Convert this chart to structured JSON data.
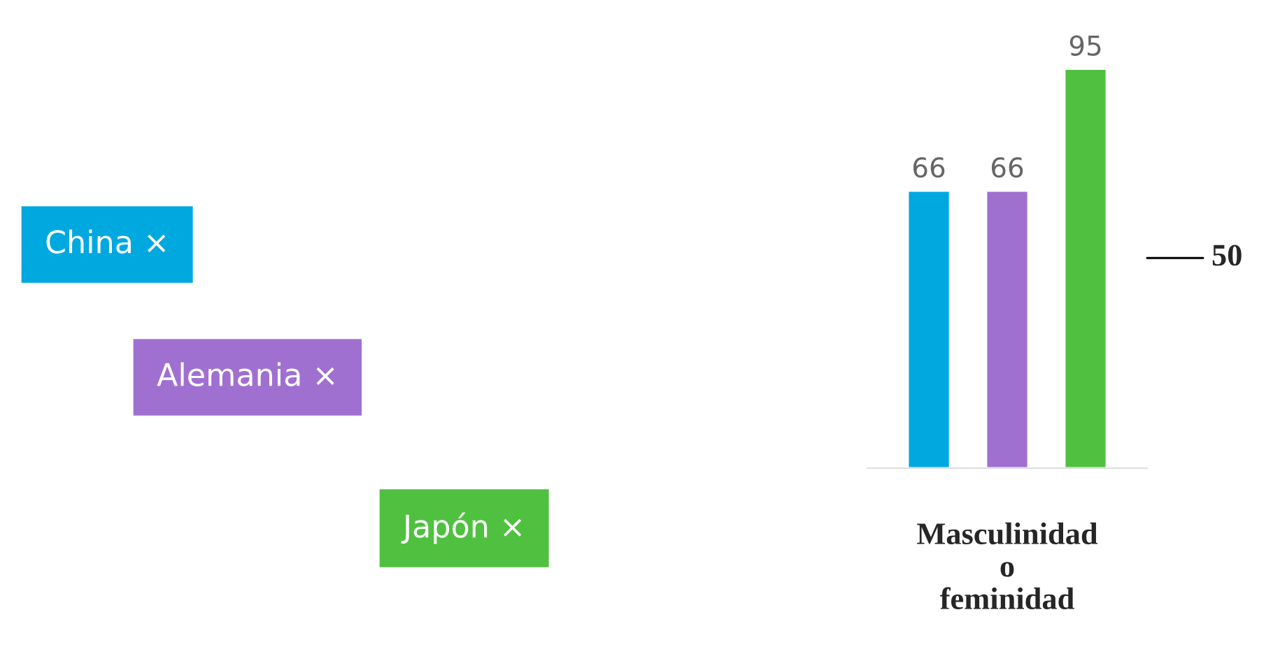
{
  "chart_data": {
    "type": "bar",
    "categories": [
      "Masculinidad o feminidad"
    ],
    "series": [
      {
        "name": "China ×",
        "color": "#00a8e0",
        "values": [
          66
        ]
      },
      {
        "name": "Alemania ×",
        "color": "#a070d0",
        "values": [
          66
        ]
      },
      {
        "name": "Japón ×",
        "color": "#50c040",
        "values": [
          95
        ]
      }
    ],
    "data_labels": true,
    "legend": "left",
    "grid": false,
    "ref_lines": [
      {
        "axis": "y",
        "value": 50,
        "label": "50",
        "color": "#000000",
        "line_style": "solid"
      }
    ]
  }
}
